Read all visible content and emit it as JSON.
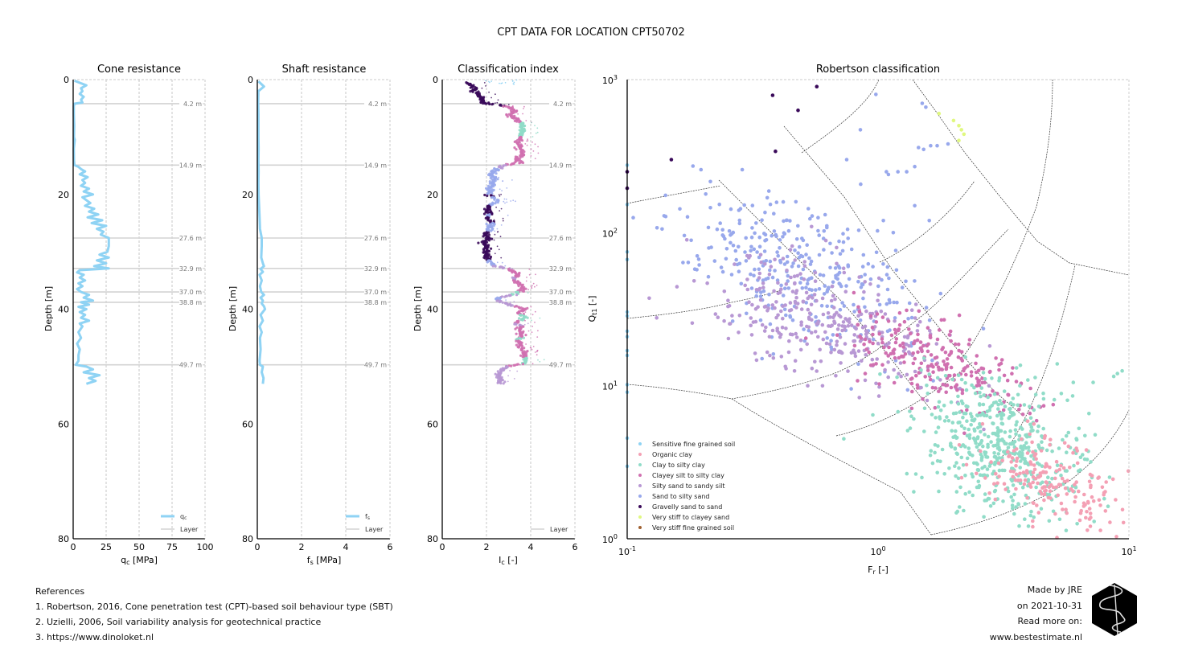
{
  "page": {
    "suptitle": "CPT DATA FOR LOCATION CPT50702"
  },
  "references": {
    "heading": "References",
    "items": [
      "1. Robertson, 2016, Cone penetration test (CPT)-based soil behaviour type (SBT)",
      "2. Uzielli, 2006, Soil variability analysis for geotechnical practice",
      "3. https://www.dinoloket.nl"
    ]
  },
  "credits": {
    "lines": [
      "Made by JRE",
      "on 2021-10-31",
      "Read more on:",
      "www.bestestimate.nl"
    ],
    "logo_icon": "hexagon-squiggle-logo-icon"
  },
  "colors": {
    "line": "#8fd3f4",
    "layer": "#d3d3d3",
    "grid": "#b0b0b0",
    "boundary": "#333333"
  },
  "chart_data": [
    {
      "type": "line",
      "title": "Cone resistance",
      "xlabel": "q_c [MPa]",
      "ylabel": "Depth [m]",
      "xlim": [
        0,
        100
      ],
      "ylim": [
        80,
        0
      ],
      "xticks": [
        0,
        25,
        50,
        75,
        100
      ],
      "yticks": [
        0,
        20,
        40,
        60,
        80
      ],
      "grid": "x-dashed",
      "legend": {
        "placement": "lower-right",
        "entries": [
          "q_c",
          "Layer"
        ]
      },
      "layers": [
        4.2,
        14.9,
        27.6,
        32.9,
        37.0,
        38.8,
        49.7
      ],
      "layer_labels": [
        "4.2 m",
        "14.9 m",
        "27.6 m",
        "32.9 m",
        "37.0 m",
        "38.8 m",
        "49.7 m"
      ],
      "series": [
        {
          "name": "q_c",
          "depth": [
            0.2,
            1,
            1.5,
            2,
            2.5,
            3,
            3.5,
            4,
            4.2,
            4.6,
            6,
            8,
            10,
            10.5,
            12,
            14,
            14.9,
            15.2,
            15.6,
            16,
            16.5,
            17,
            17.5,
            18,
            18.5,
            19,
            19.5,
            20,
            20.5,
            21,
            21.5,
            22,
            22.5,
            23,
            23.5,
            24,
            24.5,
            25,
            25.5,
            26,
            26.5,
            27,
            27.6,
            28,
            29,
            30,
            30.5,
            31,
            31.5,
            32,
            32.5,
            32.9,
            33.2,
            33.6,
            34,
            34.5,
            35,
            35.5,
            36,
            36.5,
            37,
            37.5,
            38,
            38.5,
            38.8,
            39.2,
            39.6,
            40,
            40.5,
            41,
            41.5,
            42,
            42.5,
            43,
            44,
            45,
            46,
            47,
            48,
            49,
            49.7,
            50,
            50.5,
            51,
            51.5,
            52,
            52.5,
            53
          ],
          "values": [
            1,
            10,
            6,
            7,
            5,
            8,
            6,
            7,
            1,
            0.5,
            0.5,
            0.8,
            0.6,
            1.2,
            0.5,
            0.6,
            1,
            4,
            6,
            9,
            5,
            11,
            7,
            9,
            6,
            12,
            8,
            15,
            7,
            10,
            13,
            9,
            16,
            12,
            19,
            11,
            22,
            14,
            25,
            18,
            23,
            21,
            27,
            27,
            27,
            26,
            20,
            27,
            18,
            25,
            16,
            27,
            5,
            3,
            8,
            5,
            9,
            4,
            7,
            3,
            6,
            12,
            8,
            15,
            6,
            12,
            4,
            10,
            5,
            9,
            6,
            12,
            5,
            7,
            4,
            6,
            3,
            5,
            4,
            4,
            2,
            10,
            15,
            8,
            20,
            12,
            17,
            10
          ]
        }
      ]
    },
    {
      "type": "line",
      "title": "Shaft resistance",
      "xlabel": "f_s [MPa]",
      "ylabel": "Depth [m]",
      "xlim": [
        0,
        6
      ],
      "ylim": [
        80,
        0
      ],
      "xticks": [
        0,
        2,
        4,
        6
      ],
      "yticks": [
        0,
        20,
        40,
        60,
        80
      ],
      "grid": "x-dashed",
      "legend": {
        "placement": "lower-right",
        "entries": [
          "f_s",
          "Layer"
        ]
      },
      "layers": [
        4.2,
        14.9,
        27.6,
        32.9,
        37.0,
        38.8,
        49.7
      ],
      "layer_labels": [
        "4.2 m",
        "14.9 m",
        "27.6 m",
        "32.9 m",
        "37.0 m",
        "38.8 m",
        "49.7 m"
      ],
      "series": [
        {
          "name": "f_s",
          "depth": [
            0.3,
            1.2,
            2,
            4,
            6,
            8,
            10,
            12,
            14,
            16,
            18,
            20,
            22,
            24,
            26,
            27.6,
            29,
            31,
            32,
            32.5,
            33,
            33.5,
            34,
            35,
            36,
            37,
            37.5,
            38,
            38.5,
            39,
            39.5,
            40,
            41,
            42,
            43,
            44,
            45,
            47,
            49,
            49.7,
            50,
            51,
            52,
            53
          ],
          "values": [
            0.05,
            0.3,
            0.05,
            0.04,
            0.05,
            0.05,
            0.05,
            0.06,
            0.05,
            0.06,
            0.05,
            0.06,
            0.08,
            0.1,
            0.12,
            0.2,
            0.2,
            0.18,
            0.25,
            0.3,
            0.15,
            0.25,
            0.1,
            0.2,
            0.12,
            0.18,
            0.3,
            0.15,
            0.25,
            0.2,
            0.3,
            0.35,
            0.15,
            0.25,
            0.1,
            0.2,
            0.12,
            0.15,
            0.1,
            0.12,
            0.25,
            0.2,
            0.28,
            0.25
          ]
        }
      ]
    },
    {
      "type": "scatter",
      "title": "Classification index",
      "xlabel": "I_c [-]",
      "ylabel": "Depth [m]",
      "xlim": [
        0,
        6
      ],
      "ylim": [
        80,
        0
      ],
      "xticks": [
        0,
        2,
        4,
        6
      ],
      "yticks": [
        0,
        20,
        40,
        60,
        80
      ],
      "grid": "x-dashed",
      "legend": {
        "placement": "lower-right",
        "entries": [
          "Layer"
        ]
      },
      "layers": [
        4.2,
        14.9,
        27.6,
        32.9,
        37.0,
        38.8,
        49.7
      ],
      "layer_labels": [
        "4.2 m",
        "14.9 m",
        "27.6 m",
        "32.9 m",
        "37.0 m",
        "38.8 m",
        "49.7 m"
      ],
      "profile": {
        "depth": [
          0.5,
          1,
          1.5,
          2,
          2.5,
          3,
          3.5,
          4,
          4.2,
          4.6,
          5,
          5.5,
          6,
          6.5,
          7,
          7.5,
          8,
          8.5,
          9,
          9.5,
          10,
          10.5,
          11,
          11.5,
          12,
          12.5,
          13,
          13.5,
          14,
          14.5,
          14.9,
          15.5,
          16,
          16.5,
          17,
          17.5,
          18,
          18.5,
          19,
          19.5,
          20,
          20.5,
          21,
          21.5,
          22,
          22.5,
          23,
          23.5,
          24,
          24.5,
          25,
          25.5,
          26,
          26.5,
          27,
          27.5,
          28,
          28.5,
          29,
          29.5,
          30,
          30.5,
          31,
          31.5,
          32,
          32.5,
          33,
          33.5,
          34,
          34.5,
          35,
          35.5,
          36,
          36.5,
          37,
          37.5,
          38,
          38.5,
          39,
          39.5,
          40,
          40.5,
          41,
          41.5,
          42,
          42.5,
          43,
          43.5,
          44,
          44.5,
          45,
          45.5,
          46,
          46.5,
          47,
          47.5,
          48,
          48.5,
          49,
          49.5,
          50,
          50.5,
          51,
          51.5,
          52,
          52.5,
          53
        ],
        "ic": [
          1.0,
          1.3,
          1.5,
          1.4,
          1.6,
          1.7,
          1.8,
          1.9,
          2.0,
          2.9,
          3.1,
          3.3,
          3.0,
          3.2,
          3.4,
          3.5,
          3.6,
          3.6,
          3.6,
          3.6,
          3.5,
          3.5,
          3.4,
          3.5,
          3.5,
          3.6,
          3.6,
          3.5,
          3.4,
          3.5,
          2.8,
          2.5,
          2.3,
          2.2,
          2.3,
          2.4,
          2.2,
          2.3,
          2.1,
          2.2,
          2.0,
          2.3,
          2.5,
          2.4,
          2.1,
          2.0,
          2.1,
          2.2,
          2.0,
          2.1,
          2.3,
          2.2,
          2.1,
          2.0,
          2.0,
          2.1,
          2.0,
          1.9,
          2.0,
          2.0,
          1.9,
          2.0,
          2.0,
          2.1,
          2.2,
          2.4,
          3.0,
          3.3,
          3.5,
          3.2,
          3.3,
          3.4,
          3.6,
          3.7,
          3.4,
          3.2,
          2.6,
          2.5,
          2.9,
          3.3,
          3.8,
          3.5,
          3.6,
          3.7,
          3.5,
          3.3,
          3.6,
          3.4,
          3.6,
          3.6,
          3.5,
          3.4,
          3.5,
          3.5,
          3.6,
          3.7,
          3.7,
          3.8,
          3.8,
          3.6,
          2.9,
          2.7,
          2.6,
          2.5,
          2.6,
          2.7,
          2.6
        ],
        "classes": [
          7,
          6,
          6,
          6,
          6,
          6,
          6,
          6,
          6,
          3,
          3,
          3,
          3,
          3,
          3,
          2,
          2,
          2,
          2,
          2,
          3,
          3,
          3,
          3,
          3,
          3,
          3,
          3,
          3,
          3,
          4,
          5,
          5,
          5,
          5,
          5,
          5,
          5,
          5,
          5,
          6,
          5,
          5,
          5,
          6,
          6,
          6,
          5,
          6,
          6,
          5,
          5,
          5,
          6,
          6,
          6,
          6,
          6,
          6,
          6,
          6,
          6,
          6,
          5,
          5,
          4,
          3,
          3,
          3,
          4,
          3,
          3,
          3,
          3,
          2,
          4,
          5,
          4,
          4,
          3,
          3,
          3,
          2,
          2,
          3,
          4,
          3,
          3,
          3,
          3,
          2,
          3,
          3,
          3,
          3,
          3,
          3,
          2,
          2,
          3,
          4,
          4,
          4,
          4,
          4,
          4,
          4
        ]
      }
    },
    {
      "type": "scatter",
      "title": "Robertson classification",
      "xlabel": "F_r [-]",
      "ylabel": "Q_t1 [-]",
      "xscale": "log",
      "yscale": "log",
      "xlim": [
        0.1,
        10
      ],
      "ylim": [
        1,
        1000
      ],
      "xticks": [
        "10^-1",
        "10^0",
        "10^1"
      ],
      "yticks": [
        "10^0",
        "10^1",
        "10^2",
        "10^3"
      ],
      "legend": {
        "placement": "lower-left",
        "entries": [
          {
            "label": "Sensitive fine grained soil",
            "color": "#8fd3f4"
          },
          {
            "label": "Organic clay",
            "color": "#f4a0b4"
          },
          {
            "label": "Clay to silty clay",
            "color": "#90dcc8"
          },
          {
            "label": "Clayey silt to silty clay",
            "color": "#d070b0"
          },
          {
            "label": "Silty sand to sandy silt",
            "color": "#b898d4"
          },
          {
            "label": "Sand to silty sand",
            "color": "#98a8ec"
          },
          {
            "label": "Gravelly sand to sand",
            "color": "#3a0a5a"
          },
          {
            "label": "Very stiff to clayey sand",
            "color": "#e0f880"
          },
          {
            "label": "Very stiff fine grained soil",
            "color": "#a06030"
          }
        ]
      },
      "clusters": [
        {
          "class": 6,
          "label": "Gravelly sand to sand",
          "points": [
            [
              0.1,
              250
            ],
            [
              0.1,
              195
            ],
            [
              0.15,
              300
            ],
            [
              0.38,
              790
            ],
            [
              0.39,
              340
            ],
            [
              0.48,
              630
            ],
            [
              0.57,
              900
            ]
          ]
        },
        {
          "class": 7,
          "label": "Very stiff to clayey sand",
          "points": [
            [
              1.75,
              600
            ],
            [
              2.0,
              540
            ],
            [
              2.1,
              500
            ],
            [
              2.15,
              470
            ],
            [
              2.2,
              440
            ],
            [
              2.1,
              400
            ]
          ]
        },
        {
          "class": 5,
          "label": "Sand to silty sand",
          "center": [
            0.5,
            55
          ],
          "spread": [
            0.5,
            0.45
          ],
          "n": 330
        },
        {
          "class": 4,
          "label": "Silty sand to sandy silt",
          "center": [
            0.6,
            27
          ],
          "spread": [
            0.5,
            0.35
          ],
          "n": 330
        },
        {
          "class": 3,
          "label": "Clayey silt to silty clay",
          "center": [
            1.7,
            14
          ],
          "spread": [
            0.35,
            0.25
          ],
          "n": 230
        },
        {
          "class": 2,
          "label": "Clay to silty clay",
          "center": [
            3.1,
            4.0
          ],
          "spread": [
            0.35,
            0.4
          ],
          "n": 520
        },
        {
          "class": 1,
          "label": "Organic clay",
          "center": [
            5.0,
            2.3
          ],
          "spread": [
            0.3,
            0.3
          ],
          "n": 190
        }
      ],
      "extra_points": [
        {
          "class": 5,
          "points": [
            [
              0.98,
              800
            ],
            [
              1.5,
              700
            ],
            [
              1.55,
              660
            ],
            [
              1.62,
              370
            ],
            [
              1.72,
              370
            ],
            [
              1.45,
              360
            ],
            [
              1.08,
              250
            ],
            [
              1.2,
              250
            ],
            [
              1.9,
              380
            ],
            [
              1.52,
              350
            ],
            [
              1.3,
              250
            ],
            [
              1.1,
              240
            ],
            [
              1.6,
              120
            ],
            [
              1.4,
              270
            ],
            [
              1.05,
              120
            ],
            [
              1.4,
              150
            ],
            [
              1.15,
              100
            ],
            [
              0.85,
              470
            ],
            [
              0.75,
              300
            ]
          ]
        },
        {
          "class": 2,
          "points": [
            [
              9.0,
              12
            ],
            [
              9.4,
              12.5
            ],
            [
              8.7,
              11.5
            ],
            [
              7.2,
              10.5
            ],
            [
              6.0,
              10.5
            ],
            [
              0.73,
              4.5
            ]
          ]
        }
      ]
    }
  ]
}
